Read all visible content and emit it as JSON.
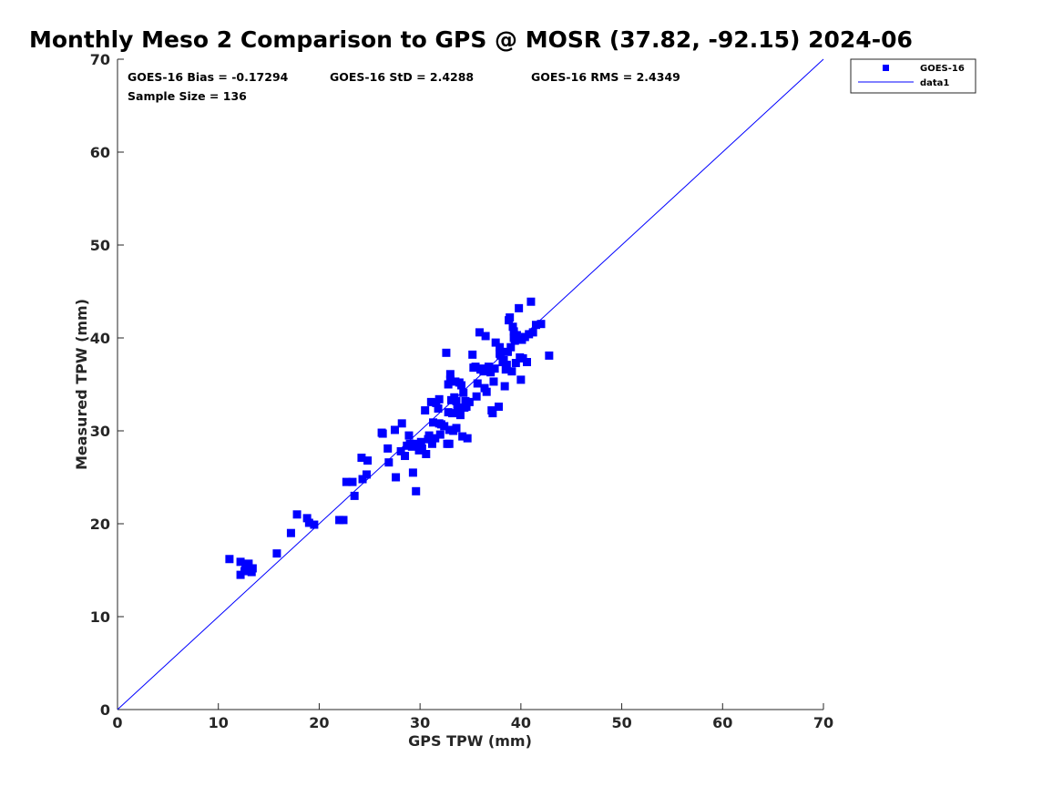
{
  "chart_data": {
    "type": "scatter",
    "title": "Monthly Meso 2 Comparison to GPS @ MOSR (37.82, -92.15) 2024-06",
    "xlabel": "GPS TPW (mm)",
    "ylabel": "Measured TPW (mm)",
    "xlim": [
      0,
      70
    ],
    "ylim": [
      0,
      70
    ],
    "xticks": [
      0,
      10,
      20,
      30,
      40,
      50,
      60,
      70
    ],
    "yticks": [
      0,
      10,
      20,
      30,
      40,
      50,
      60,
      70
    ],
    "grid": false,
    "legend_position": "top-right",
    "stats": {
      "bias": "GOES-16 Bias = -0.17294",
      "std": "GOES-16 StD = 2.4288",
      "rms": "GOES-16 RMS = 2.4349",
      "sample": "Sample Size = 136"
    },
    "series": [
      {
        "name": "GOES-16",
        "kind": "scatter",
        "marker": "square",
        "color": "#0000ff",
        "points": [
          [
            11.1,
            16.2
          ],
          [
            12.2,
            15.9
          ],
          [
            12.2,
            14.5
          ],
          [
            12.6,
            14.9
          ],
          [
            12.7,
            15.4
          ],
          [
            12.9,
            15.0
          ],
          [
            13.0,
            15.7
          ],
          [
            13.3,
            14.8
          ],
          [
            13.4,
            15.2
          ],
          [
            15.8,
            16.8
          ],
          [
            17.2,
            19.0
          ],
          [
            17.8,
            21.0
          ],
          [
            18.8,
            20.6
          ],
          [
            19.0,
            20.1
          ],
          [
            19.5,
            19.9
          ],
          [
            22.0,
            20.4
          ],
          [
            22.4,
            20.4
          ],
          [
            22.7,
            24.5
          ],
          [
            23.3,
            24.5
          ],
          [
            23.5,
            23.0
          ],
          [
            24.3,
            24.8
          ],
          [
            24.2,
            27.1
          ],
          [
            24.7,
            25.3
          ],
          [
            24.8,
            26.8
          ],
          [
            26.3,
            29.7
          ],
          [
            26.8,
            28.1
          ],
          [
            26.9,
            26.6
          ],
          [
            27.5,
            30.1
          ],
          [
            27.6,
            25.0
          ],
          [
            28.1,
            27.8
          ],
          [
            28.2,
            30.8
          ],
          [
            28.5,
            27.3
          ],
          [
            28.7,
            28.4
          ],
          [
            28.9,
            29.5
          ],
          [
            29.2,
            28.3
          ],
          [
            29.3,
            25.5
          ],
          [
            29.6,
            23.5
          ],
          [
            29.7,
            28.6
          ],
          [
            29.9,
            27.9
          ],
          [
            30.1,
            28.8
          ],
          [
            30.2,
            28.1
          ],
          [
            30.5,
            32.2
          ],
          [
            30.6,
            27.5
          ],
          [
            30.9,
            29.5
          ],
          [
            31.1,
            33.1
          ],
          [
            31.2,
            28.6
          ],
          [
            31.3,
            30.9
          ],
          [
            31.5,
            29.2
          ],
          [
            31.6,
            33.0
          ],
          [
            31.8,
            32.4
          ],
          [
            31.9,
            33.4
          ],
          [
            32.0,
            29.6
          ],
          [
            32.1,
            30.7
          ],
          [
            32.4,
            30.5
          ],
          [
            32.6,
            38.4
          ],
          [
            32.7,
            28.6
          ],
          [
            32.8,
            35.0
          ],
          [
            32.8,
            32.0
          ],
          [
            32.9,
            30.1
          ],
          [
            32.9,
            28.6
          ],
          [
            33.0,
            36.1
          ],
          [
            33.0,
            35.5
          ],
          [
            33.1,
            33.3
          ],
          [
            33.2,
            31.9
          ],
          [
            33.3,
            30.0
          ],
          [
            33.4,
            33.6
          ],
          [
            33.5,
            35.3
          ],
          [
            33.6,
            30.3
          ],
          [
            33.7,
            32.5
          ],
          [
            33.9,
            35.2
          ],
          [
            34.0,
            31.7
          ],
          [
            34.1,
            34.9
          ],
          [
            34.2,
            29.4
          ],
          [
            34.3,
            34.1
          ],
          [
            34.4,
            32.5
          ],
          [
            34.5,
            33.2
          ],
          [
            34.6,
            32.6
          ],
          [
            34.7,
            29.2
          ],
          [
            34.9,
            33.1
          ],
          [
            35.2,
            38.2
          ],
          [
            35.3,
            36.8
          ],
          [
            35.6,
            33.7
          ],
          [
            35.7,
            35.1
          ],
          [
            35.9,
            40.6
          ],
          [
            36.0,
            36.6
          ],
          [
            36.3,
            36.4
          ],
          [
            36.4,
            34.6
          ],
          [
            36.5,
            40.2
          ],
          [
            36.6,
            34.2
          ],
          [
            36.8,
            36.9
          ],
          [
            37.0,
            36.3
          ],
          [
            37.1,
            32.2
          ],
          [
            37.2,
            31.9
          ],
          [
            37.3,
            35.3
          ],
          [
            37.4,
            36.7
          ],
          [
            37.5,
            39.5
          ],
          [
            37.8,
            32.6
          ],
          [
            37.9,
            39.0
          ],
          [
            38.0,
            38.1
          ],
          [
            38.2,
            37.4
          ],
          [
            38.3,
            37.6
          ],
          [
            38.4,
            34.8
          ],
          [
            38.5,
            36.6
          ],
          [
            38.6,
            37.1
          ],
          [
            38.7,
            38.5
          ],
          [
            38.8,
            41.9
          ],
          [
            38.9,
            42.2
          ],
          [
            39.0,
            39.0
          ],
          [
            39.1,
            36.4
          ],
          [
            39.2,
            41.2
          ],
          [
            39.3,
            40.7
          ],
          [
            39.4,
            39.7
          ],
          [
            39.5,
            37.3
          ],
          [
            39.6,
            40.3
          ],
          [
            39.8,
            43.2
          ],
          [
            39.9,
            37.9
          ],
          [
            40.0,
            35.5
          ],
          [
            40.1,
            39.8
          ],
          [
            40.2,
            37.8
          ],
          [
            40.4,
            40.1
          ],
          [
            40.6,
            37.4
          ],
          [
            40.8,
            40.4
          ],
          [
            41.0,
            43.9
          ],
          [
            41.2,
            40.6
          ],
          [
            41.5,
            41.4
          ],
          [
            42.0,
            41.5
          ],
          [
            42.8,
            38.1
          ],
          [
            26.2,
            29.8
          ],
          [
            30.8,
            29.1
          ],
          [
            35.5,
            36.9
          ],
          [
            37.9,
            38.3
          ],
          [
            39.3,
            40.0
          ],
          [
            36.1,
            36.7
          ],
          [
            33.6,
            33.2
          ],
          [
            31.9,
            30.8
          ],
          [
            29.0,
            28.6
          ]
        ]
      },
      {
        "name": "data1",
        "kind": "line",
        "color": "#0000ff",
        "points": [
          [
            0,
            0
          ],
          [
            70,
            70
          ]
        ]
      }
    ]
  }
}
